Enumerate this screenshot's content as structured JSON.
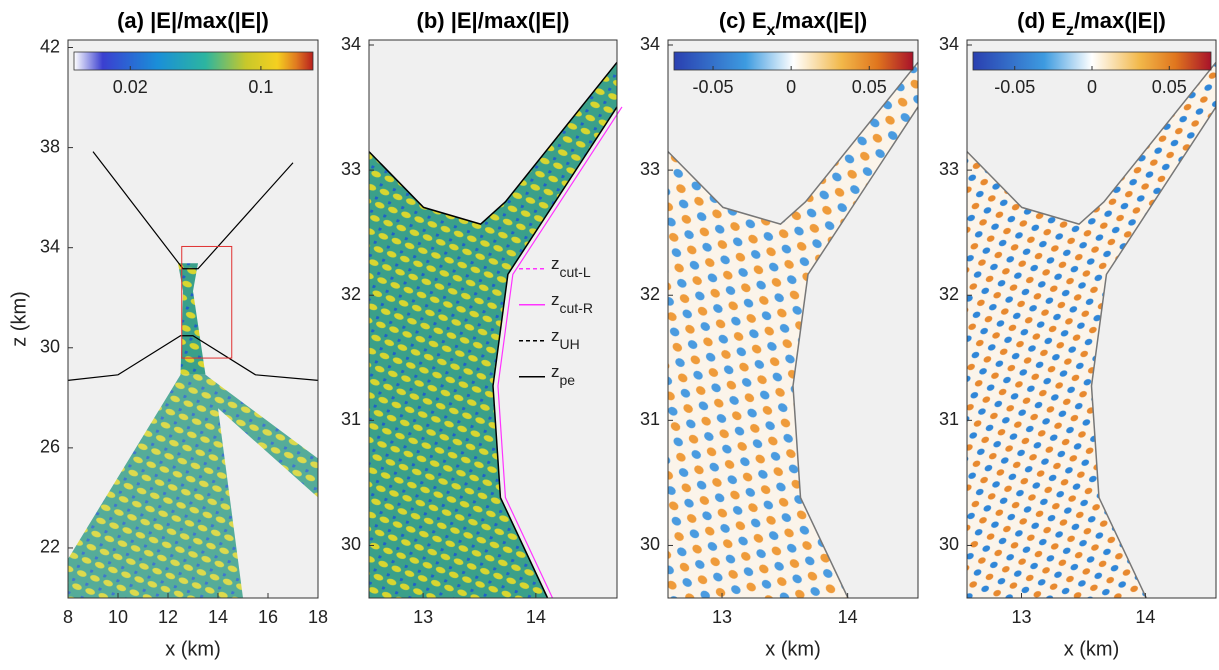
{
  "chart_data": [
    {
      "type": "heatmap",
      "title_parts": [
        {
          "text": "(a) |E|/max(|E|)"
        }
      ],
      "x_label": "x (km)",
      "y_label": "z (km)",
      "xlim": [
        8,
        18
      ],
      "xticks": [
        8,
        10,
        12,
        14,
        16,
        18
      ],
      "ylim": [
        20,
        42.3
      ],
      "yticks": [
        22,
        26,
        30,
        34,
        38,
        42
      ],
      "colormap": "parula",
      "clog": true,
      "clim": [
        0.01,
        0.19
      ],
      "cticks": [
        0.02,
        0.1
      ]
    },
    {
      "type": "heatmap",
      "title_parts": [
        {
          "text": "(b) |E|/max(|E|)"
        }
      ],
      "xlim": [
        12.52,
        14.72
      ],
      "xticks": [
        13,
        14
      ],
      "ylim": [
        29.58,
        34.04
      ],
      "yticks": [
        30,
        31,
        32,
        33,
        34
      ],
      "colormap": "parula",
      "series": [
        {
          "name": "z",
          "sub": "cut-L",
          "color": "#ff33ff",
          "dash": true
        },
        {
          "name": "z",
          "sub": "cut-R",
          "color": "#ff33ff",
          "dash": false
        },
        {
          "name": "z",
          "sub": "UH",
          "color": "#000000",
          "dash": true
        },
        {
          "name": "z",
          "sub": "pe",
          "color": "#000000",
          "dash": false
        }
      ]
    },
    {
      "type": "heatmap",
      "title_parts": [
        {
          "text": "(c) E"
        },
        {
          "text": "x",
          "sub": true
        },
        {
          "text": "/max(|E|)"
        }
      ],
      "x_label": "x (km)",
      "xlim": [
        12.57,
        14.56
      ],
      "xticks": [
        13,
        14
      ],
      "ylim": [
        29.58,
        34.04
      ],
      "yticks": [
        30,
        31,
        32,
        33,
        34
      ],
      "colormap": "diverging",
      "clog": false,
      "clim": [
        -0.075,
        0.078
      ],
      "cticks": [
        -0.05,
        0,
        0.05
      ]
    },
    {
      "type": "heatmap",
      "title_parts": [
        {
          "text": "(d) E"
        },
        {
          "text": "z",
          "sub": true
        },
        {
          "text": "/max(|E|)"
        }
      ],
      "x_label": "x (km)",
      "xlim": [
        12.56,
        14.57
      ],
      "xticks": [
        13,
        14
      ],
      "ylim": [
        29.58,
        34.04
      ],
      "yticks": [
        30,
        31,
        32,
        33,
        34
      ],
      "colormap": "diverging",
      "clog": false,
      "clim": [
        -0.077,
        0.077
      ],
      "cticks": [
        -0.05,
        0,
        0.05
      ]
    }
  ]
}
